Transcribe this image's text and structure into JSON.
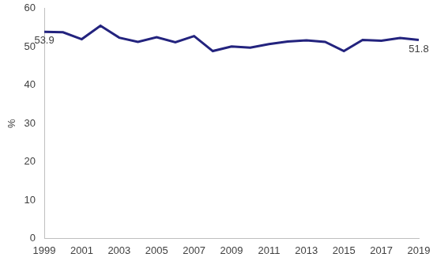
{
  "chart_data": {
    "type": "line",
    "y_label": "%",
    "categories": [
      "1999",
      null,
      "2001",
      null,
      "2003",
      null,
      "2005",
      null,
      "2007",
      null,
      "2009",
      null,
      "2011",
      null,
      "2013",
      null,
      "2015",
      null,
      "2017",
      null,
      "2019"
    ],
    "values": [
      53.9,
      53.8,
      52.0,
      55.5,
      52.4,
      51.3,
      52.5,
      51.2,
      52.8,
      48.9,
      50.1,
      49.8,
      50.7,
      51.4,
      51.7,
      51.3,
      48.9,
      51.8,
      51.6,
      52.3,
      51.8
    ],
    "value_labels": [
      "53.9",
      null,
      null,
      null,
      null,
      null,
      null,
      null,
      null,
      null,
      null,
      null,
      null,
      null,
      null,
      null,
      null,
      null,
      null,
      null,
      "51.8"
    ],
    "data_labels": true,
    "color": "#23237e",
    "ylim": [
      0,
      60
    ],
    "yticks": [
      0,
      10,
      20,
      30,
      40,
      50,
      60
    ],
    "grid": false
  }
}
